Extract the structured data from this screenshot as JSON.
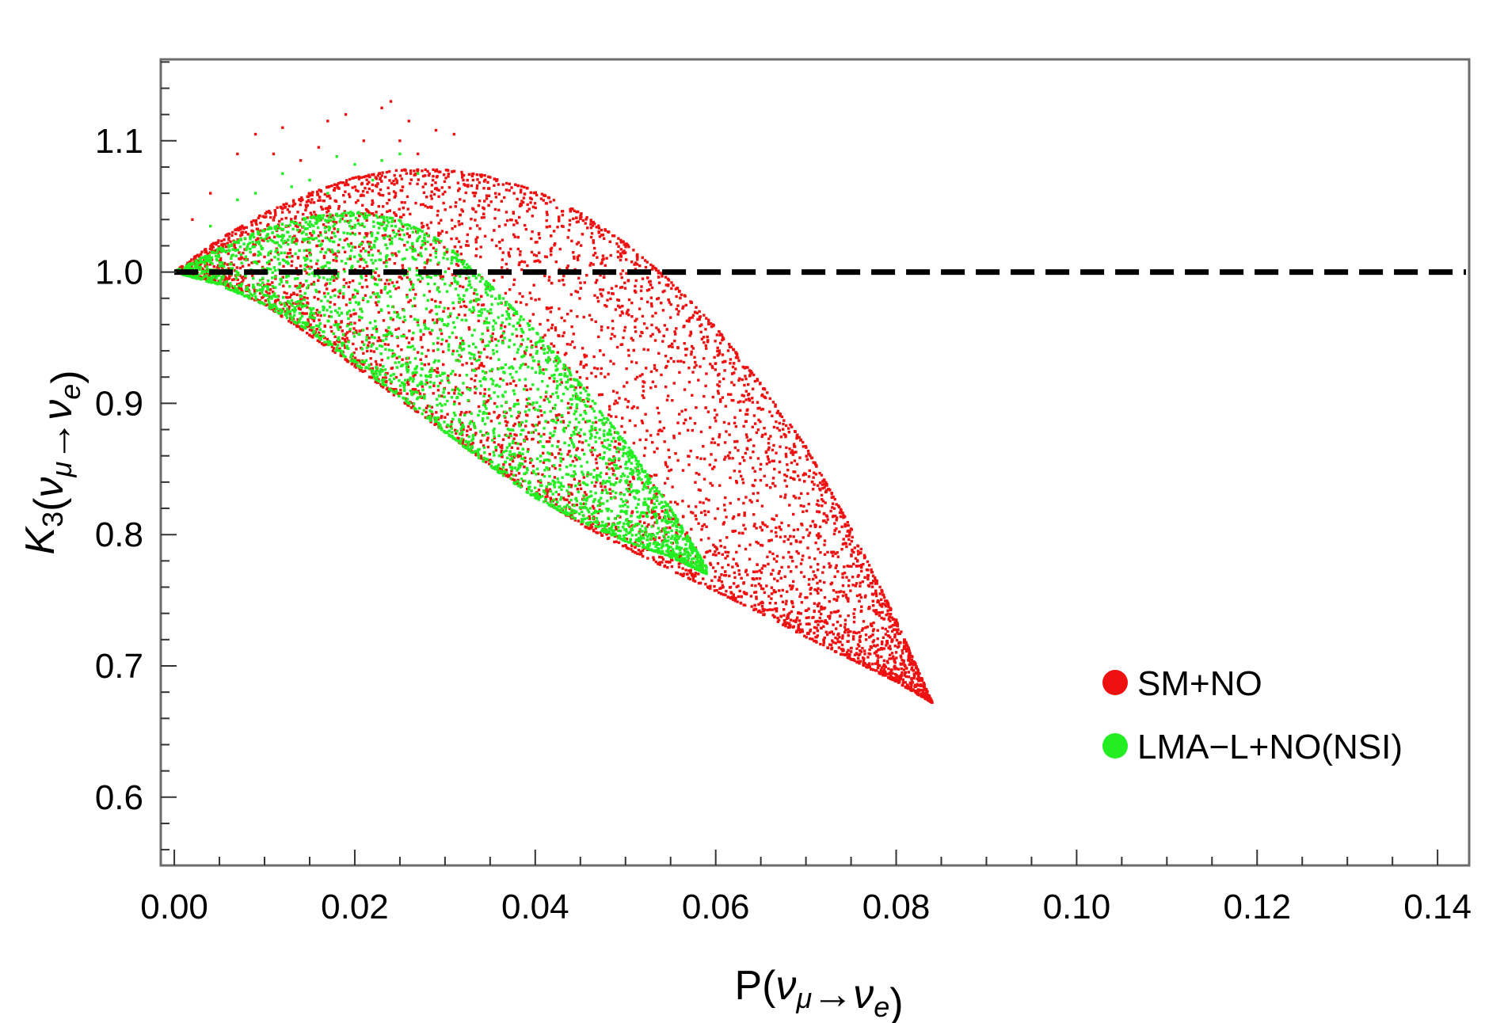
{
  "chart_data": {
    "type": "scatter",
    "title": "",
    "xlabel": {
      "parts": [
        {
          "t": "P(",
          "italic": false,
          "sub": ""
        },
        {
          "t": "ν",
          "italic": true,
          "sub": "μ"
        },
        {
          "t": "→",
          "italic": false,
          "sub": ""
        },
        {
          "t": "ν",
          "italic": true,
          "sub": "e"
        },
        {
          "t": ")",
          "italic": false,
          "sub": ""
        }
      ]
    },
    "ylabel": {
      "parts": [
        {
          "t": "K",
          "italic": true,
          "sub": "3"
        },
        {
          "t": "(",
          "italic": false,
          "sub": ""
        },
        {
          "t": "ν",
          "italic": true,
          "sub": "μ"
        },
        {
          "t": "→",
          "italic": false,
          "sub": ""
        },
        {
          "t": "ν",
          "italic": true,
          "sub": "e"
        },
        {
          "t": ")",
          "italic": false,
          "sub": ""
        }
      ]
    },
    "xlim": [
      -0.0015,
      0.1435
    ],
    "ylim": [
      0.548,
      1.162
    ],
    "xticks": [
      0.0,
      0.02,
      0.04,
      0.06,
      0.08,
      0.1,
      0.12,
      0.14
    ],
    "xtick_labels": [
      "0.00",
      "0.02",
      "0.04",
      "0.06",
      "0.08",
      "0.10",
      "0.12",
      "0.14"
    ],
    "x_minor_step": 0.005,
    "yticks": [
      0.6,
      0.7,
      0.8,
      0.9,
      1.0,
      1.1
    ],
    "ytick_labels": [
      "0.6",
      "0.7",
      "0.8",
      "0.9",
      "1.0",
      "1.1"
    ],
    "y_minor_step": 0.02,
    "reference_line": {
      "y": 1.0,
      "style": "dashed",
      "color": "#000000"
    },
    "legend_position": "lower-right",
    "series": [
      {
        "name": "SM+NO",
        "color": "#ee1111",
        "marker": "point",
        "upper_boundary": [
          [
            0.0,
            1.0
          ],
          [
            0.005,
            1.025
          ],
          [
            0.01,
            1.045
          ],
          [
            0.015,
            1.06
          ],
          [
            0.02,
            1.072
          ],
          [
            0.025,
            1.078
          ],
          [
            0.03,
            1.078
          ],
          [
            0.035,
            1.073
          ],
          [
            0.04,
            1.062
          ],
          [
            0.045,
            1.045
          ],
          [
            0.05,
            1.022
          ],
          [
            0.055,
            0.993
          ],
          [
            0.06,
            0.958
          ],
          [
            0.065,
            0.915
          ],
          [
            0.07,
            0.867
          ],
          [
            0.075,
            0.805
          ],
          [
            0.08,
            0.735
          ],
          [
            0.084,
            0.672
          ]
        ],
        "lower_boundary": [
          [
            0.0,
            1.0
          ],
          [
            0.005,
            0.992
          ],
          [
            0.01,
            0.975
          ],
          [
            0.015,
            0.952
          ],
          [
            0.02,
            0.928
          ],
          [
            0.025,
            0.903
          ],
          [
            0.03,
            0.878
          ],
          [
            0.035,
            0.853
          ],
          [
            0.04,
            0.83
          ],
          [
            0.045,
            0.808
          ],
          [
            0.05,
            0.79
          ],
          [
            0.055,
            0.773
          ],
          [
            0.06,
            0.757
          ],
          [
            0.065,
            0.74
          ],
          [
            0.07,
            0.722
          ],
          [
            0.075,
            0.705
          ],
          [
            0.08,
            0.688
          ],
          [
            0.084,
            0.672
          ]
        ],
        "outliers": [
          [
            0.009,
            1.105
          ],
          [
            0.012,
            1.11
          ],
          [
            0.014,
            1.085
          ],
          [
            0.017,
            1.115
          ],
          [
            0.019,
            1.12
          ],
          [
            0.021,
            1.1
          ],
          [
            0.023,
            1.125
          ],
          [
            0.024,
            1.13
          ],
          [
            0.026,
            1.115
          ],
          [
            0.029,
            1.108
          ],
          [
            0.031,
            1.105
          ],
          [
            0.007,
            1.09
          ],
          [
            0.016,
            1.095
          ],
          [
            0.025,
            1.1
          ],
          [
            0.004,
            1.06
          ],
          [
            0.002,
            1.04
          ],
          [
            0.011,
            1.09
          ],
          [
            0.027,
            1.09
          ]
        ]
      },
      {
        "name": "LMA−L+NO(NSI)",
        "color": "#22ee22",
        "marker": "point",
        "upper_boundary": [
          [
            0.0,
            1.0
          ],
          [
            0.005,
            1.018
          ],
          [
            0.01,
            1.033
          ],
          [
            0.015,
            1.042
          ],
          [
            0.02,
            1.046
          ],
          [
            0.025,
            1.04
          ],
          [
            0.03,
            1.022
          ],
          [
            0.035,
            0.99
          ],
          [
            0.04,
            0.955
          ],
          [
            0.045,
            0.915
          ],
          [
            0.05,
            0.87
          ],
          [
            0.055,
            0.82
          ],
          [
            0.059,
            0.775
          ]
        ],
        "lower_boundary": [
          [
            0.0,
            1.0
          ],
          [
            0.005,
            0.99
          ],
          [
            0.01,
            0.975
          ],
          [
            0.015,
            0.955
          ],
          [
            0.02,
            0.93
          ],
          [
            0.025,
            0.905
          ],
          [
            0.03,
            0.878
          ],
          [
            0.035,
            0.852
          ],
          [
            0.04,
            0.828
          ],
          [
            0.045,
            0.81
          ],
          [
            0.05,
            0.795
          ],
          [
            0.055,
            0.783
          ],
          [
            0.059,
            0.77
          ]
        ],
        "outliers": [
          [
            0.009,
            1.06
          ],
          [
            0.012,
            1.075
          ],
          [
            0.015,
            1.07
          ],
          [
            0.018,
            1.088
          ],
          [
            0.02,
            1.082
          ],
          [
            0.023,
            1.085
          ],
          [
            0.025,
            1.09
          ],
          [
            0.027,
            1.075
          ],
          [
            0.007,
            1.055
          ],
          [
            0.004,
            1.035
          ],
          [
            0.013,
            1.065
          ],
          [
            0.017,
            1.06
          ],
          [
            0.022,
            1.07
          ]
        ]
      }
    ]
  }
}
